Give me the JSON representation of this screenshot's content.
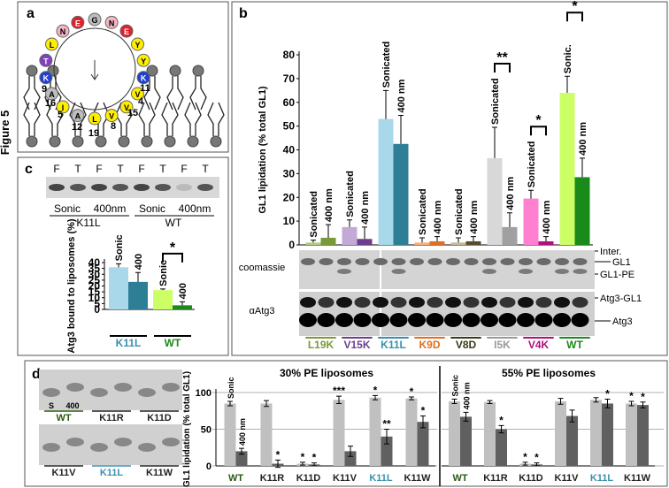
{
  "figure_label": "Figure 5",
  "panel_labels": [
    "a",
    "b",
    "c",
    "d"
  ],
  "helix": {
    "residues": [
      {
        "letter": "G",
        "color": "#bdbdbd"
      },
      {
        "letter": "N",
        "color": "#f4b6c2"
      },
      {
        "letter": "E",
        "color": "#e0202a"
      },
      {
        "letter": "Y",
        "color": "#ffee00"
      },
      {
        "letter": "Y",
        "color": "#ffee00"
      },
      {
        "letter": "K",
        "color": "#2040d0"
      },
      {
        "letter": "V",
        "color": "#ffee00"
      },
      {
        "letter": "V",
        "color": "#ffee00"
      },
      {
        "letter": "V",
        "color": "#ffee00"
      },
      {
        "letter": "L",
        "color": "#ffee00"
      },
      {
        "letter": "A",
        "color": "#bdbdbd"
      },
      {
        "letter": "I",
        "color": "#ffee00"
      },
      {
        "letter": "A",
        "color": "#bdbdbd"
      },
      {
        "letter": "K",
        "color": "#2040d0"
      },
      {
        "letter": "T",
        "color": "#8040c0"
      },
      {
        "letter": "L",
        "color": "#ffee00"
      },
      {
        "letter": "N",
        "color": "#f4b6c2"
      },
      {
        "letter": "E",
        "color": "#e0202a"
      }
    ],
    "positions": [
      "9",
      "16",
      "5",
      "12",
      "19",
      "8",
      "15",
      "4",
      "11"
    ]
  },
  "blot_b": {
    "left": [
      "coomassie",
      "αAtg3"
    ],
    "right": [
      "Inter.",
      "GL1",
      "GL1-PE",
      "Atg3-GL1",
      "Atg3"
    ]
  },
  "gel_c": {
    "lanes": [
      "F",
      "T",
      "F",
      "T",
      "F",
      "T",
      "F",
      "T"
    ],
    "conditions": [
      "Sonic",
      "400nm",
      "Sonic",
      "400nm"
    ],
    "samples": [
      "K11L",
      "WT"
    ]
  },
  "gel_d": {
    "lane_labels": [
      "S",
      "400"
    ],
    "samples": [
      "WT",
      "K11R",
      "K11D",
      "K11V",
      "K11L",
      "K11W"
    ],
    "sample_colors": [
      "#2a5a10",
      "#222222",
      "#222222",
      "#222222",
      "#3a8fb0",
      "#222222"
    ]
  },
  "chart_data": [
    {
      "type": "bar",
      "ylabel": "GL1 lipidation (% total GL1)",
      "categories": [
        "L19K",
        "V15K",
        "K11L",
        "K9D",
        "V8D",
        "I5K",
        "V4K",
        "WT"
      ],
      "category_colors": [
        "#7a9a3a",
        "#6b3f8c",
        "#3a8fb0",
        "#e07020",
        "#3a3a1a",
        "#999999",
        "#b0107a",
        "#1a8a1a"
      ],
      "ylim": [
        0,
        80
      ],
      "yticks": [
        0,
        10,
        20,
        30,
        40,
        50,
        60,
        70,
        80
      ],
      "grid": false,
      "error_bars": "upper",
      "series": [
        {
          "labels": [
            "Sonicated",
            "Sonicated",
            "Sonicated",
            "Sonicated",
            "Sonicated",
            "Sonicated",
            "Sonicated",
            "Sonic."
          ],
          "colors": [
            "#b5c98a",
            "#c2a9d6",
            "#a8d8ea",
            "#f5b27a",
            "#c8b89a",
            "#d8d8d8",
            "#ff7fd0",
            "#ccff66"
          ],
          "values": [
            1,
            7.5,
            53,
            1,
            1,
            36.5,
            19.5,
            64
          ],
          "errors": [
            1,
            3,
            12,
            2,
            2,
            13,
            3.5,
            7
          ]
        },
        {
          "labels": [
            "400 nm",
            "400 nm",
            "400 nm",
            "400 nm",
            "400 nm",
            "400 nm",
            "400 nm",
            "400 nm"
          ],
          "colors": [
            "#7a9a3a",
            "#6b3f8c",
            "#2e7f95",
            "#e07020",
            "#5a4a2a",
            "#a0a0a0",
            "#b0107a",
            "#1a8a1a"
          ],
          "values": [
            3,
            2.5,
            42.5,
            1.5,
            1.5,
            7.5,
            1.5,
            28.5
          ],
          "errors": [
            5.5,
            5,
            12,
            2,
            2,
            6,
            2,
            8
          ]
        }
      ],
      "significance": [
        null,
        null,
        null,
        null,
        null,
        "**",
        "*",
        "*"
      ]
    },
    {
      "type": "bar",
      "ylabel": "Atg3 bound to liposomes (%)",
      "categories": [
        "K11L",
        "WT"
      ],
      "category_colors": [
        "#3a8fb0",
        "#1a8a1a"
      ],
      "ylim": [
        0,
        40
      ],
      "yticks": [
        0,
        5,
        10,
        15,
        20,
        25,
        30,
        35,
        40
      ],
      "grid": false,
      "error_bars": "upper",
      "series": [
        {
          "labels": [
            "Sonic",
            "Sonic"
          ],
          "colors": [
            "#a8d8ea",
            "#ccff66"
          ],
          "values": [
            36,
            16.5
          ],
          "errors": [
            3,
            1
          ]
        },
        {
          "labels": [
            "400",
            "400"
          ],
          "colors": [
            "#2e7f95",
            "#1a8a1a"
          ],
          "values": [
            23.5,
            3.5
          ],
          "errors": [
            8,
            3
          ]
        }
      ],
      "significance": [
        null,
        "*"
      ]
    },
    {
      "type": "bar",
      "title": "30% PE liposomes",
      "ylabel": "GL1 lipidation (% total GL1)",
      "categories": [
        "WT",
        "K11R",
        "K11D",
        "K11V",
        "K11L",
        "K11W"
      ],
      "category_colors": [
        "#2a5a10",
        "#222222",
        "#222222",
        "#222222",
        "#3a8fb0",
        "#222222"
      ],
      "ylim": [
        0,
        100
      ],
      "yticks": [
        0,
        50,
        100
      ],
      "grid": true,
      "error_bars": "both",
      "series": [
        {
          "labels": [
            "Sonic",
            null,
            null,
            null,
            null,
            null
          ],
          "color": "#c0c0c0",
          "values": [
            85,
            85,
            3,
            90,
            93,
            92
          ],
          "errors": [
            3,
            4,
            2,
            5,
            3,
            2
          ],
          "stars": [
            null,
            null,
            "*",
            "***",
            "*",
            "*"
          ]
        },
        {
          "labels": [
            "400 nm",
            null,
            null,
            null,
            null,
            null
          ],
          "color": "#606060",
          "values": [
            20,
            3,
            2,
            20,
            40,
            60
          ],
          "errors": [
            4,
            5,
            2,
            7,
            10,
            8
          ],
          "stars": [
            null,
            "*",
            "*",
            null,
            "**",
            "*"
          ]
        }
      ]
    },
    {
      "type": "bar",
      "title": "55% PE liposomes",
      "categories": [
        "WT",
        "K11R",
        "K11D",
        "K11V",
        "K11L",
        "K11W"
      ],
      "category_colors": [
        "#2a5a10",
        "#222222",
        "#222222",
        "#222222",
        "#3a8fb0",
        "#222222"
      ],
      "ylim": [
        0,
        100
      ],
      "yticks": [
        0,
        50,
        100
      ],
      "grid": true,
      "tick_labels": false,
      "error_bars": "both",
      "series": [
        {
          "labels": [
            "Sonic",
            null,
            null,
            null,
            null,
            null
          ],
          "color": "#c0c0c0",
          "values": [
            88,
            87,
            3,
            88,
            90,
            85
          ],
          "errors": [
            3,
            2,
            2,
            4,
            3,
            3
          ],
          "stars": [
            null,
            null,
            "*",
            null,
            null,
            "*"
          ]
        },
        {
          "labels": [
            "400 nm",
            null,
            null,
            null,
            null,
            null
          ],
          "color": "#606060",
          "values": [
            67,
            50,
            2,
            68,
            85,
            83
          ],
          "errors": [
            6,
            5,
            2,
            8,
            6,
            4
          ],
          "stars": [
            null,
            "*",
            "*",
            null,
            "*",
            "*"
          ]
        }
      ]
    }
  ]
}
